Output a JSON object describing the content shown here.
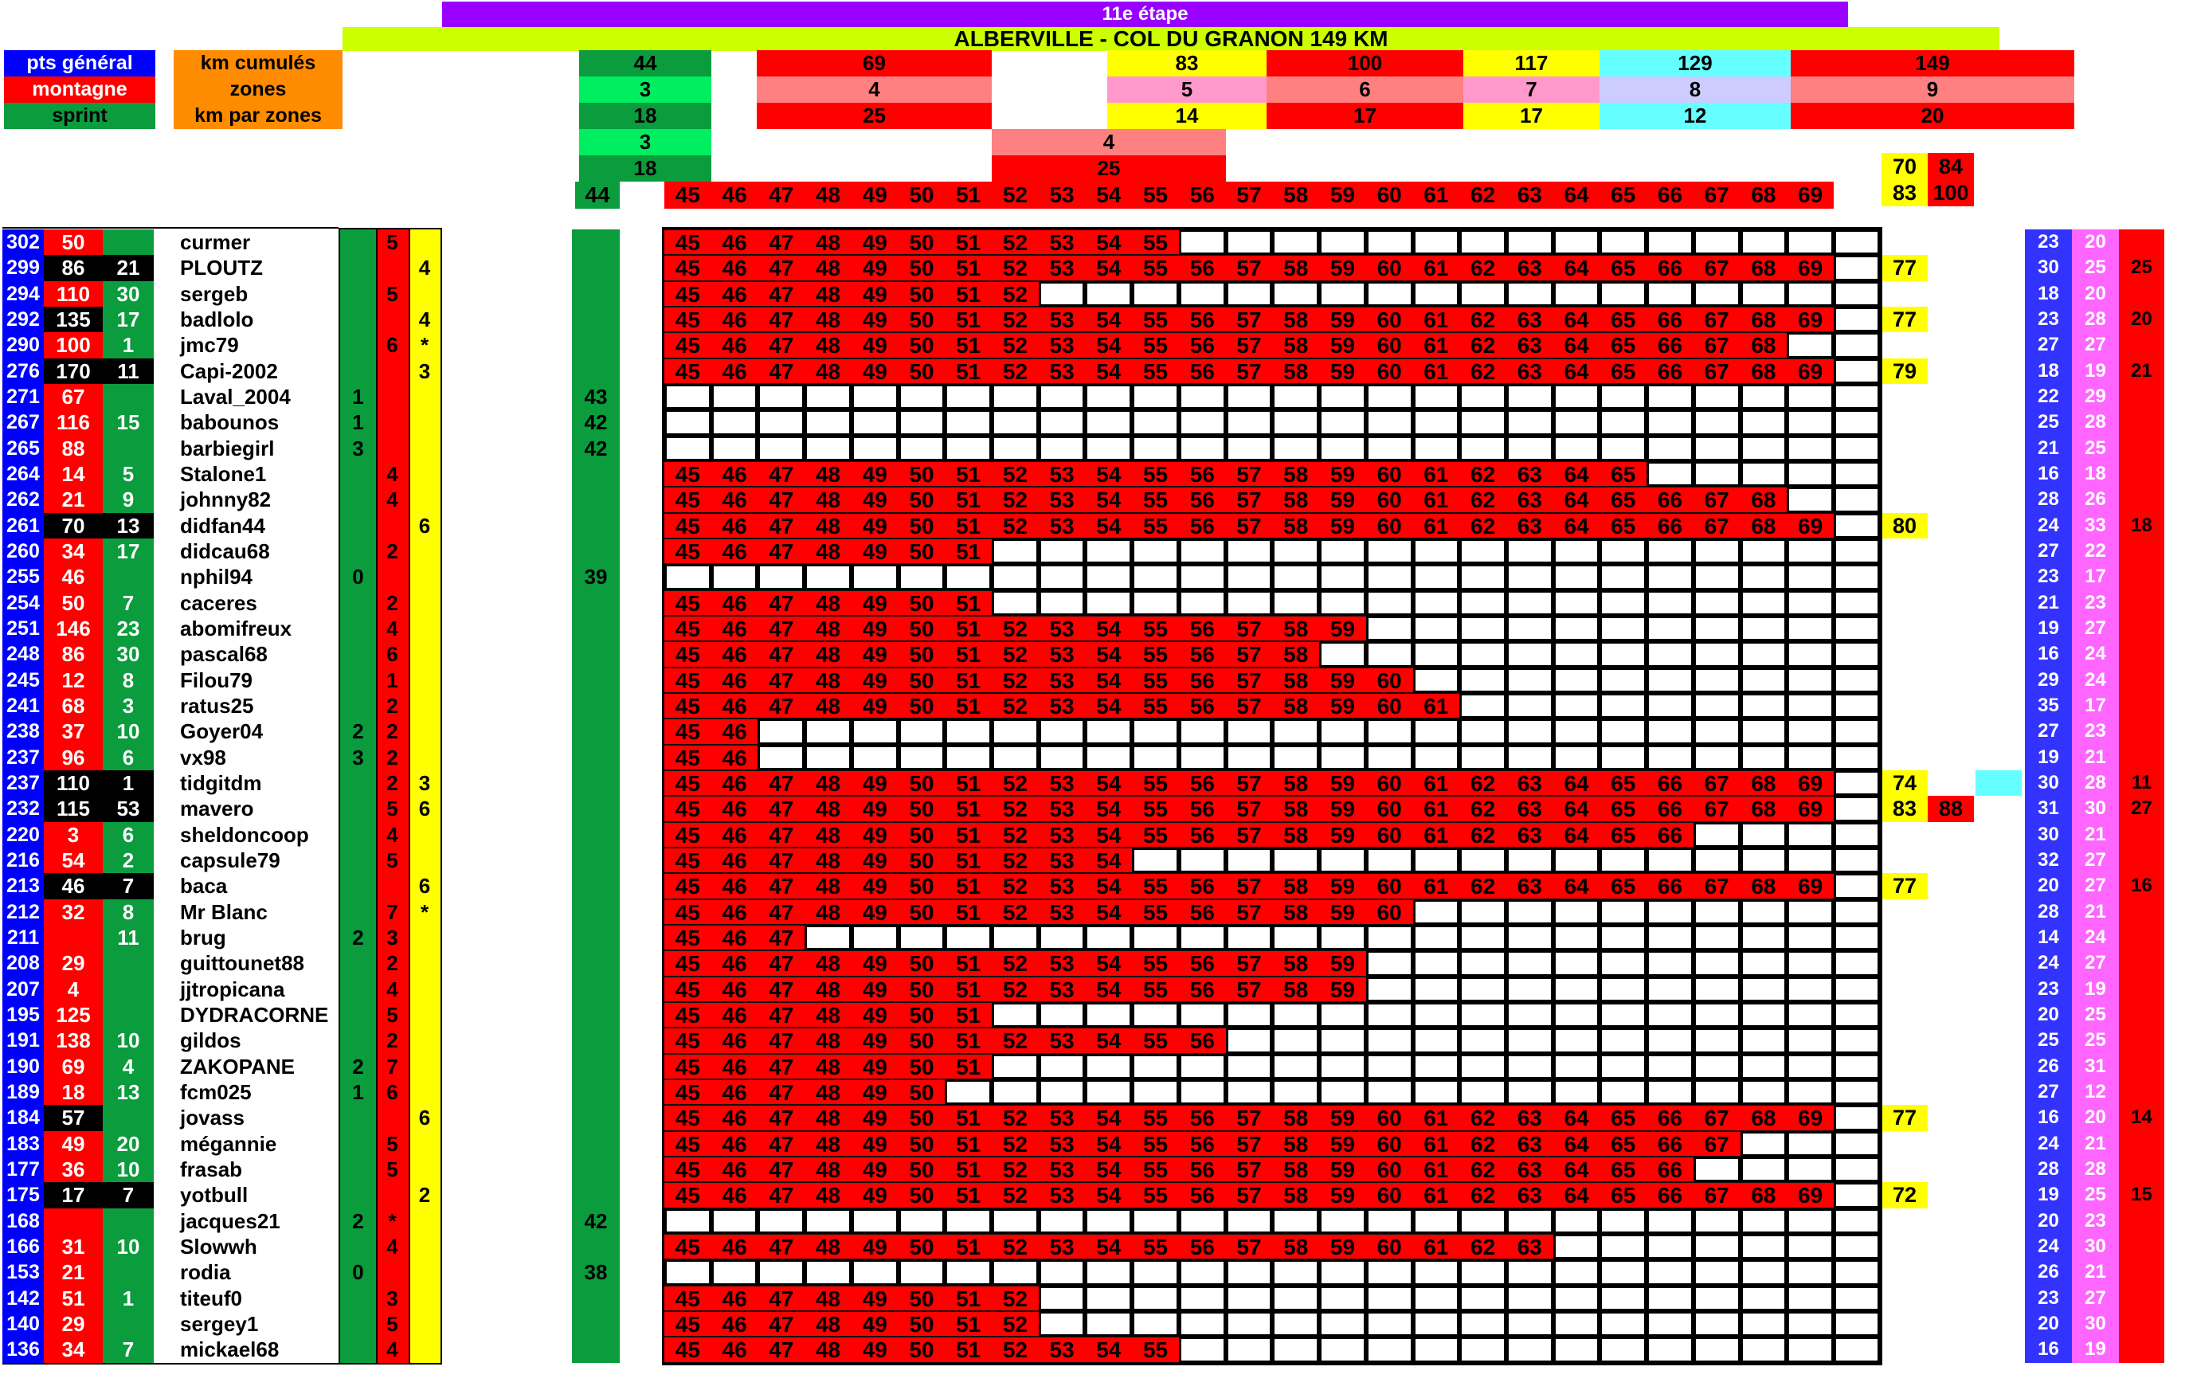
{
  "palette": {
    "purple": "#9900FF",
    "chartreuse": "#CCFF00",
    "blue": "#0000FF",
    "blue2": "#3333FF",
    "red": "#FF0000",
    "dgreen": "#0A9C3D",
    "bgreen": "#00EF60",
    "salmon": "#FF8080",
    "pink": "#FF99CC",
    "lavender": "#CCCCFF",
    "yellow": "#FFFF00",
    "cyan": "#66FFFF",
    "magenta": "#FF66FF",
    "orange": "#FF8C00",
    "black": "#000000",
    "white": "#FFFFFF"
  },
  "banner": {
    "stage": "11e étape",
    "route": "ALBERVILLE - COL DU GRANON 149 KM"
  },
  "legend": [
    {
      "label": "pts général",
      "bg": "blue",
      "fg": "#FFFFFF"
    },
    {
      "label": "montagne",
      "bg": "red",
      "fg": "#FFFFFF"
    },
    {
      "label": "sprint",
      "bg": "dgreen",
      "fg": "#000000"
    }
  ],
  "row_headers": [
    "km cumulés",
    "zones",
    "km par zones"
  ],
  "checkpoints": {
    "km": [
      {
        "v": "44",
        "c": "dgreen"
      },
      {
        "v": "69",
        "c": "red"
      },
      {
        "v": "83",
        "c": "yellow"
      },
      {
        "v": "100",
        "c": "red"
      },
      {
        "v": "117",
        "c": "yellow"
      },
      {
        "v": "129",
        "c": "cyan"
      },
      {
        "v": "149",
        "c": "red"
      }
    ],
    "zones": [
      {
        "v": "3",
        "c": "bgreen"
      },
      {
        "v": "4",
        "c": "salmon"
      },
      {
        "v": "5",
        "c": "pink"
      },
      {
        "v": "6",
        "c": "salmon"
      },
      {
        "v": "7",
        "c": "pink"
      },
      {
        "v": "8",
        "c": "lavender"
      },
      {
        "v": "9",
        "c": "salmon"
      }
    ],
    "km_par_zones": [
      {
        "v": "18",
        "c": "dgreen"
      },
      {
        "v": "25",
        "c": "red"
      },
      {
        "v": "14",
        "c": "yellow"
      },
      {
        "v": "17",
        "c": "red"
      },
      {
        "v": "17",
        "c": "yellow"
      },
      {
        "v": "12",
        "c": "cyan"
      },
      {
        "v": "20",
        "c": "red"
      }
    ],
    "zone1_detail": {
      "zone": "3",
      "km": "18"
    },
    "zone4_detail": {
      "zone": "4",
      "km": "25"
    },
    "corner_top": [
      {
        "v": "70",
        "c": "yellow"
      },
      {
        "v": "84",
        "c": "red"
      }
    ],
    "corner_bottom": [
      {
        "v": "83",
        "c": "yellow"
      },
      {
        "v": "100",
        "c": "red"
      }
    ]
  },
  "track": {
    "start": "44",
    "cols": [
      "45",
      "46",
      "47",
      "48",
      "49",
      "50",
      "51",
      "52",
      "53",
      "54",
      "55",
      "56",
      "57",
      "58",
      "59",
      "60",
      "61",
      "62",
      "63",
      "64",
      "65",
      "66",
      "67",
      "68",
      "69"
    ]
  },
  "riders": [
    {
      "rank": "302",
      "pts": "50",
      "ph": false,
      "bonus": "",
      "bh": false,
      "name": "curmer",
      "g": "",
      "r": "5",
      "y": "",
      "z1": "",
      "last": 55,
      "tot": "",
      "e88": "",
      "cy": false,
      "blue": "23",
      "mag": "20",
      "red": ""
    },
    {
      "rank": "299",
      "pts": "86",
      "ph": true,
      "bonus": "21",
      "bh": true,
      "name": "PLOUTZ",
      "g": "",
      "r": "",
      "y": "4",
      "z1": "",
      "last": 69,
      "tot": "77",
      "e88": "",
      "cy": false,
      "blue": "30",
      "mag": "25",
      "red": "25"
    },
    {
      "rank": "294",
      "pts": "110",
      "ph": false,
      "bonus": "30",
      "bh": false,
      "name": "sergeb",
      "g": "",
      "r": "5",
      "y": "",
      "z1": "",
      "last": 52,
      "tot": "",
      "e88": "",
      "cy": false,
      "blue": "18",
      "mag": "20",
      "red": ""
    },
    {
      "rank": "292",
      "pts": "135",
      "ph": true,
      "bonus": "17",
      "bh": false,
      "name": "badlolo",
      "g": "",
      "r": "",
      "y": "4",
      "z1": "",
      "last": 69,
      "tot": "77",
      "e88": "",
      "cy": false,
      "blue": "23",
      "mag": "28",
      "red": "20"
    },
    {
      "rank": "290",
      "pts": "100",
      "ph": false,
      "bonus": "1",
      "bh": false,
      "name": "jmc79",
      "g": "",
      "r": "6",
      "y": "*",
      "z1": "",
      "last": 68,
      "tot": "",
      "e88": "",
      "cy": false,
      "blue": "27",
      "mag": "27",
      "red": ""
    },
    {
      "rank": "276",
      "pts": "170",
      "ph": true,
      "bonus": "11",
      "bh": true,
      "name": "Capi-2002",
      "g": "",
      "r": "",
      "y": "3",
      "z1": "",
      "last": 69,
      "tot": "79",
      "e88": "",
      "cy": false,
      "blue": "18",
      "mag": "19",
      "red": "21"
    },
    {
      "rank": "271",
      "pts": "67",
      "ph": false,
      "bonus": "",
      "bh": false,
      "name": "Laval_2004",
      "g": "1",
      "r": "",
      "y": "",
      "z1": "43",
      "last": 44,
      "tot": "",
      "e88": "",
      "cy": false,
      "blue": "22",
      "mag": "29",
      "red": ""
    },
    {
      "rank": "267",
      "pts": "116",
      "ph": false,
      "bonus": "15",
      "bh": false,
      "name": "babounos",
      "g": "1",
      "r": "",
      "y": "",
      "z1": "42",
      "last": 44,
      "tot": "",
      "e88": "",
      "cy": false,
      "blue": "25",
      "mag": "28",
      "red": ""
    },
    {
      "rank": "265",
      "pts": "88",
      "ph": false,
      "bonus": "",
      "bh": false,
      "name": "barbiegirl",
      "g": "3",
      "r": "",
      "y": "",
      "z1": "42",
      "last": 44,
      "tot": "",
      "e88": "",
      "cy": false,
      "blue": "21",
      "mag": "25",
      "red": ""
    },
    {
      "rank": "264",
      "pts": "14",
      "ph": false,
      "bonus": "5",
      "bh": false,
      "name": "Stalone1",
      "g": "",
      "r": "4",
      "y": "",
      "z1": "",
      "last": 65,
      "tot": "",
      "e88": "",
      "cy": false,
      "blue": "16",
      "mag": "18",
      "red": ""
    },
    {
      "rank": "262",
      "pts": "21",
      "ph": false,
      "bonus": "9",
      "bh": false,
      "name": "johnny82",
      "g": "",
      "r": "4",
      "y": "",
      "z1": "",
      "last": 68,
      "tot": "",
      "e88": "",
      "cy": false,
      "blue": "28",
      "mag": "26",
      "red": ""
    },
    {
      "rank": "261",
      "pts": "70",
      "ph": true,
      "bonus": "13",
      "bh": true,
      "name": "didfan44",
      "g": "",
      "r": "",
      "y": "6",
      "z1": "",
      "last": 69,
      "tot": "80",
      "e88": "",
      "cy": false,
      "blue": "24",
      "mag": "33",
      "red": "18"
    },
    {
      "rank": "260",
      "pts": "34",
      "ph": false,
      "bonus": "17",
      "bh": false,
      "name": "didcau68",
      "g": "",
      "r": "2",
      "y": "",
      "z1": "",
      "last": 51,
      "tot": "",
      "e88": "",
      "cy": false,
      "blue": "27",
      "mag": "22",
      "red": ""
    },
    {
      "rank": "255",
      "pts": "46",
      "ph": false,
      "bonus": "",
      "bh": false,
      "name": "nphil94",
      "g": "0",
      "r": "",
      "y": "",
      "z1": "39",
      "last": 44,
      "tot": "",
      "e88": "",
      "cy": false,
      "blue": "23",
      "mag": "17",
      "red": ""
    },
    {
      "rank": "254",
      "pts": "50",
      "ph": false,
      "bonus": "7",
      "bh": false,
      "name": "caceres",
      "g": "",
      "r": "2",
      "y": "",
      "z1": "",
      "last": 51,
      "tot": "",
      "e88": "",
      "cy": false,
      "blue": "21",
      "mag": "23",
      "red": ""
    },
    {
      "rank": "251",
      "pts": "146",
      "ph": false,
      "bonus": "23",
      "bh": false,
      "name": "abomifreux",
      "g": "",
      "r": "4",
      "y": "",
      "z1": "",
      "last": 59,
      "tot": "",
      "e88": "",
      "cy": false,
      "blue": "19",
      "mag": "27",
      "red": ""
    },
    {
      "rank": "248",
      "pts": "86",
      "ph": false,
      "bonus": "30",
      "bh": false,
      "name": "pascal68",
      "g": "",
      "r": "6",
      "y": "",
      "z1": "",
      "last": 58,
      "tot": "",
      "e88": "",
      "cy": false,
      "blue": "16",
      "mag": "24",
      "red": ""
    },
    {
      "rank": "245",
      "pts": "12",
      "ph": false,
      "bonus": "8",
      "bh": false,
      "name": "Filou79",
      "g": "",
      "r": "1",
      "y": "",
      "z1": "",
      "last": 60,
      "tot": "",
      "e88": "",
      "cy": false,
      "blue": "29",
      "mag": "24",
      "red": ""
    },
    {
      "rank": "241",
      "pts": "68",
      "ph": false,
      "bonus": "3",
      "bh": false,
      "name": "ratus25",
      "g": "",
      "r": "2",
      "y": "",
      "z1": "",
      "last": 61,
      "tot": "",
      "e88": "",
      "cy": false,
      "blue": "35",
      "mag": "17",
      "red": ""
    },
    {
      "rank": "238",
      "pts": "37",
      "ph": false,
      "bonus": "10",
      "bh": false,
      "name": "Goyer04",
      "g": "2",
      "r": "2",
      "y": "",
      "z1": "",
      "last": 46,
      "tot": "",
      "e88": "",
      "cy": false,
      "blue": "27",
      "mag": "23",
      "red": ""
    },
    {
      "rank": "237",
      "pts": "96",
      "ph": false,
      "bonus": "6",
      "bh": false,
      "name": "vx98",
      "g": "3",
      "r": "2",
      "y": "",
      "z1": "",
      "last": 46,
      "tot": "",
      "e88": "",
      "cy": false,
      "blue": "19",
      "mag": "21",
      "red": ""
    },
    {
      "rank": "237",
      "pts": "110",
      "ph": true,
      "bonus": "1",
      "bh": true,
      "name": "tidgitdm",
      "g": "",
      "r": "2",
      "y": "3",
      "z1": "",
      "last": 69,
      "tot": "74",
      "e88": "",
      "cy": true,
      "blue": "30",
      "mag": "28",
      "red": "11"
    },
    {
      "rank": "232",
      "pts": "115",
      "ph": true,
      "bonus": "53",
      "bh": true,
      "name": "mavero",
      "g": "",
      "r": "5",
      "y": "6",
      "z1": "",
      "last": 69,
      "tot": "83",
      "e88": "88",
      "cy": false,
      "blue": "31",
      "mag": "30",
      "red": "27"
    },
    {
      "rank": "220",
      "pts": "3",
      "ph": false,
      "bonus": "6",
      "bh": false,
      "name": "sheldoncoop",
      "g": "",
      "r": "4",
      "y": "",
      "z1": "",
      "last": 66,
      "tot": "",
      "e88": "",
      "cy": false,
      "blue": "30",
      "mag": "21",
      "red": ""
    },
    {
      "rank": "216",
      "pts": "54",
      "ph": false,
      "bonus": "2",
      "bh": false,
      "name": "capsule79",
      "g": "",
      "r": "5",
      "y": "",
      "z1": "",
      "last": 54,
      "tot": "",
      "e88": "",
      "cy": false,
      "blue": "32",
      "mag": "27",
      "red": ""
    },
    {
      "rank": "213",
      "pts": "46",
      "ph": true,
      "bonus": "7",
      "bh": true,
      "name": "baca",
      "g": "",
      "r": "",
      "y": "6",
      "z1": "",
      "last": 69,
      "tot": "77",
      "e88": "",
      "cy": false,
      "blue": "20",
      "mag": "27",
      "red": "16"
    },
    {
      "rank": "212",
      "pts": "32",
      "ph": false,
      "bonus": "8",
      "bh": false,
      "name": "Mr Blanc",
      "g": "",
      "r": "7",
      "y": "*",
      "z1": "",
      "last": 60,
      "tot": "",
      "e88": "",
      "cy": false,
      "blue": "28",
      "mag": "21",
      "red": ""
    },
    {
      "rank": "211",
      "pts": "",
      "ph": false,
      "bonus": "11",
      "bh": false,
      "name": "brug",
      "g": "2",
      "r": "3",
      "y": "",
      "z1": "",
      "last": 47,
      "tot": "",
      "e88": "",
      "cy": false,
      "blue": "14",
      "mag": "24",
      "red": ""
    },
    {
      "rank": "208",
      "pts": "29",
      "ph": false,
      "bonus": "",
      "bh": false,
      "name": "guittounet88",
      "g": "",
      "r": "2",
      "y": "",
      "z1": "",
      "last": 59,
      "tot": "",
      "e88": "",
      "cy": false,
      "blue": "24",
      "mag": "27",
      "red": ""
    },
    {
      "rank": "207",
      "pts": "4",
      "ph": false,
      "bonus": "",
      "bh": false,
      "name": "jjtropicana",
      "g": "",
      "r": "4",
      "y": "",
      "z1": "",
      "last": 59,
      "tot": "",
      "e88": "",
      "cy": false,
      "blue": "23",
      "mag": "19",
      "red": ""
    },
    {
      "rank": "195",
      "pts": "125",
      "ph": false,
      "bonus": "",
      "bh": false,
      "name": "DYDRACORNE",
      "g": "",
      "r": "5",
      "y": "",
      "z1": "",
      "last": 51,
      "tot": "",
      "e88": "",
      "cy": false,
      "blue": "20",
      "mag": "25",
      "red": ""
    },
    {
      "rank": "191",
      "pts": "138",
      "ph": false,
      "bonus": "10",
      "bh": false,
      "name": "gildos",
      "g": "",
      "r": "2",
      "y": "",
      "z1": "",
      "last": 56,
      "tot": "",
      "e88": "",
      "cy": false,
      "blue": "25",
      "mag": "25",
      "red": ""
    },
    {
      "rank": "190",
      "pts": "69",
      "ph": false,
      "bonus": "4",
      "bh": false,
      "name": "ZAKOPANE",
      "g": "2",
      "r": "7",
      "y": "",
      "z1": "",
      "last": 51,
      "tot": "",
      "e88": "",
      "cy": false,
      "blue": "26",
      "mag": "31",
      "red": ""
    },
    {
      "rank": "189",
      "pts": "18",
      "ph": false,
      "bonus": "13",
      "bh": false,
      "name": "fcm025",
      "g": "1",
      "r": "6",
      "y": "",
      "z1": "",
      "last": 50,
      "tot": "",
      "e88": "",
      "cy": false,
      "blue": "27",
      "mag": "12",
      "red": ""
    },
    {
      "rank": "184",
      "pts": "57",
      "ph": true,
      "bonus": "",
      "bh": false,
      "name": "jovass",
      "g": "",
      "r": "",
      "y": "6",
      "z1": "",
      "last": 69,
      "tot": "77",
      "e88": "",
      "cy": false,
      "blue": "16",
      "mag": "20",
      "red": "14"
    },
    {
      "rank": "183",
      "pts": "49",
      "ph": false,
      "bonus": "20",
      "bh": false,
      "name": "mégannie",
      "g": "",
      "r": "5",
      "y": "",
      "z1": "",
      "last": 67,
      "tot": "",
      "e88": "",
      "cy": false,
      "blue": "24",
      "mag": "21",
      "red": ""
    },
    {
      "rank": "177",
      "pts": "36",
      "ph": false,
      "bonus": "10",
      "bh": false,
      "name": "frasab",
      "g": "",
      "r": "5",
      "y": "",
      "z1": "",
      "last": 66,
      "tot": "",
      "e88": "",
      "cy": false,
      "blue": "28",
      "mag": "28",
      "red": ""
    },
    {
      "rank": "175",
      "pts": "17",
      "ph": true,
      "bonus": "7",
      "bh": true,
      "name": "yotbull",
      "g": "",
      "r": "",
      "y": "2",
      "z1": "",
      "last": 69,
      "tot": "72",
      "e88": "",
      "cy": false,
      "blue": "19",
      "mag": "25",
      "red": "15"
    },
    {
      "rank": "168",
      "pts": "",
      "ph": false,
      "bonus": "",
      "bh": false,
      "name": "jacques21",
      "g": "2",
      "r": "*",
      "y": "",
      "z1": "42",
      "last": 44,
      "tot": "",
      "e88": "",
      "cy": false,
      "blue": "20",
      "mag": "23",
      "red": ""
    },
    {
      "rank": "166",
      "pts": "31",
      "ph": false,
      "bonus": "10",
      "bh": false,
      "name": "Slowwh",
      "g": "",
      "r": "4",
      "y": "",
      "z1": "",
      "last": 63,
      "tot": "",
      "e88": "",
      "cy": false,
      "blue": "24",
      "mag": "30",
      "red": ""
    },
    {
      "rank": "153",
      "pts": "21",
      "ph": false,
      "bonus": "",
      "bh": false,
      "name": "rodia",
      "g": "0",
      "r": "",
      "y": "",
      "z1": "38",
      "last": 44,
      "tot": "",
      "e88": "",
      "cy": false,
      "blue": "26",
      "mag": "21",
      "red": ""
    },
    {
      "rank": "142",
      "pts": "51",
      "ph": false,
      "bonus": "1",
      "bh": false,
      "name": "titeuf0",
      "g": "",
      "r": "3",
      "y": "",
      "z1": "",
      "last": 52,
      "tot": "",
      "e88": "",
      "cy": false,
      "blue": "23",
      "mag": "27",
      "red": ""
    },
    {
      "rank": "140",
      "pts": "29",
      "ph": false,
      "bonus": "",
      "bh": false,
      "name": "sergey1",
      "g": "",
      "r": "5",
      "y": "",
      "z1": "",
      "last": 52,
      "tot": "",
      "e88": "",
      "cy": false,
      "blue": "20",
      "mag": "30",
      "red": ""
    },
    {
      "rank": "136",
      "pts": "34",
      "ph": false,
      "bonus": "7",
      "bh": false,
      "name": "mickael68",
      "g": "",
      "r": "4",
      "y": "",
      "z1": "",
      "last": 55,
      "tot": "",
      "e88": "",
      "cy": false,
      "blue": "16",
      "mag": "19",
      "red": ""
    }
  ]
}
